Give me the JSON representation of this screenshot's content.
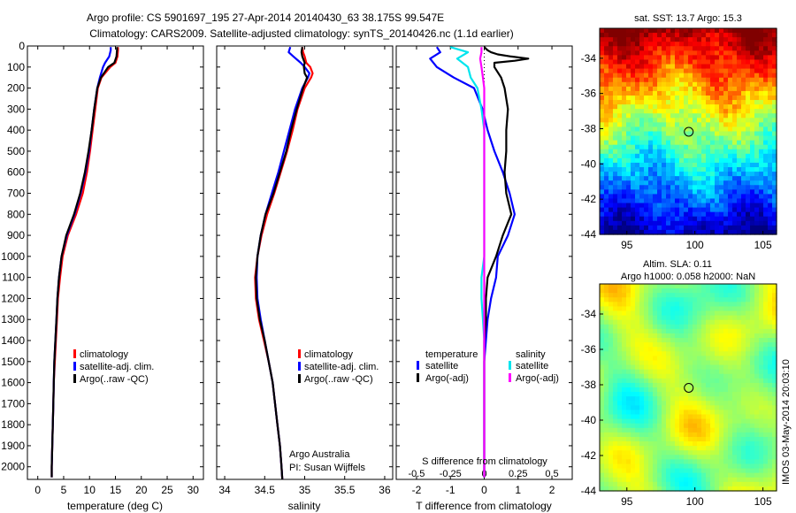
{
  "title_line1": "Argo profile: CS 5901697_195 27-Apr-2014 20140430_63 38.175S 99.547E",
  "title_line2": "Climatology: CARS2009. Satellite-adjusted climatology: synTS_20140426.nc (1.1d earlier)",
  "map1_title": "sat. SST: 13.7 Argo: 15.3",
  "map2_title_line1": "Altim. SLA: 0.11",
  "map2_title_line2": "Argo h1000: 0.058 h2000: NaN",
  "side_note": "IMOS 03-May-2014 20:03:10",
  "credit_line1": "Argo Australia",
  "credit_line2": "PI: Susan Wijffels",
  "colors": {
    "climatology": "#ff0000",
    "satellite": "#0000ff",
    "argo": "#000000",
    "sat_s_diff": "#00e5ee",
    "argo_s_diff": "#ff00ff"
  },
  "depth_ticks": [
    0,
    100,
    200,
    300,
    400,
    500,
    600,
    700,
    800,
    900,
    1000,
    1100,
    1200,
    1300,
    1400,
    1500,
    1600,
    1700,
    1800,
    1900,
    2000
  ],
  "chart_data": [
    {
      "type": "line",
      "xlabel": "temperature (deg C)",
      "ylabel": "",
      "xlim": [
        -2,
        32
      ],
      "ylim": [
        2060,
        0
      ],
      "xticks": [
        0,
        5,
        10,
        15,
        20,
        25,
        30
      ],
      "legend": [
        "climatology",
        "satellite-adj. clim.",
        "Argo(..raw -QC)"
      ],
      "legend_position": "lower-right",
      "series": [
        {
          "name": "climatology",
          "depth": [
            5,
            20,
            50,
            80,
            100,
            150,
            200,
            300,
            400,
            500,
            600,
            700,
            800,
            900,
            1000,
            1100,
            1200,
            1300,
            1400,
            1500,
            1600,
            1700,
            1800,
            1900,
            2000,
            2050
          ],
          "values": [
            15.5,
            15.5,
            15.4,
            15.0,
            14.0,
            12.3,
            11.6,
            11.1,
            10.6,
            10.1,
            9.5,
            8.7,
            7.4,
            5.8,
            4.8,
            4.3,
            3.9,
            3.7,
            3.5,
            3.3,
            3.1,
            3.0,
            2.9,
            2.8,
            2.7,
            2.7
          ]
        },
        {
          "name": "satellite-adj. clim.",
          "depth": [
            5,
            20,
            50,
            80,
            100,
            150,
            200,
            300,
            400,
            500,
            600,
            700,
            800,
            900,
            1000,
            1100,
            1200,
            1300,
            1400,
            1500,
            1600,
            1700,
            1800,
            1900,
            2000,
            2050
          ],
          "values": [
            14.1,
            14.1,
            13.8,
            13.0,
            12.6,
            12.0,
            11.5,
            10.9,
            10.4,
            9.9,
            9.2,
            8.3,
            7.1,
            5.6,
            4.6,
            4.1,
            3.8,
            3.6,
            3.4,
            3.2,
            3.1,
            3.0,
            2.9,
            2.8,
            2.7,
            2.7
          ]
        },
        {
          "name": "Argo(..raw -QC)",
          "depth": [
            5,
            20,
            50,
            80,
            100,
            150,
            200,
            300,
            400,
            500,
            600,
            700,
            800,
            900,
            1000,
            1100,
            1200,
            1300,
            1400,
            1500,
            1600,
            1700,
            1800,
            1900,
            2000,
            2050
          ],
          "values": [
            15.3,
            15.3,
            15.2,
            14.8,
            13.6,
            12.2,
            11.5,
            10.9,
            10.4,
            9.8,
            9.1,
            8.2,
            7.0,
            5.5,
            4.6,
            4.1,
            3.8,
            3.6,
            3.4,
            3.2,
            3.1,
            3.0,
            2.9,
            2.8,
            2.7,
            2.7
          ]
        }
      ]
    },
    {
      "type": "line",
      "xlabel": "salinity",
      "ylabel": "",
      "xlim": [
        33.9,
        36.1
      ],
      "ylim": [
        2060,
        0
      ],
      "xticks": [
        34,
        34.5,
        35,
        35.5,
        36
      ],
      "xtick_labels": [
        "34",
        "34.5",
        "35",
        "35.5",
        "36"
      ],
      "legend": [
        "climatology",
        "satellite-adj. clim.",
        "Argo(..raw -QC)"
      ],
      "legend_position": "lower-right",
      "series": [
        {
          "name": "climatology",
          "depth": [
            5,
            30,
            50,
            80,
            100,
            130,
            150,
            200,
            300,
            400,
            500,
            600,
            700,
            800,
            900,
            1000,
            1100,
            1200,
            1300,
            1400,
            1500,
            1600,
            1700,
            1800,
            1900,
            2000,
            2060
          ],
          "values": [
            34.97,
            34.98,
            35.0,
            35.02,
            35.07,
            35.1,
            35.08,
            35.0,
            34.91,
            34.85,
            34.78,
            34.7,
            34.62,
            34.53,
            34.46,
            34.41,
            34.38,
            34.39,
            34.43,
            34.49,
            34.55,
            34.6,
            34.63,
            34.66,
            34.69,
            34.71,
            34.72
          ]
        },
        {
          "name": "satellite-adj. clim.",
          "depth": [
            5,
            30,
            50,
            80,
            100,
            130,
            150,
            200,
            300,
            400,
            500,
            600,
            700,
            800,
            900,
            1000,
            1100,
            1200,
            1300,
            1400,
            1500,
            1600,
            1700,
            1800,
            1900,
            2000,
            2060
          ],
          "values": [
            34.82,
            34.8,
            34.86,
            34.95,
            35.0,
            35.06,
            35.04,
            34.97,
            34.88,
            34.81,
            34.74,
            34.67,
            34.59,
            34.51,
            34.45,
            34.41,
            34.4,
            34.41,
            34.45,
            34.5,
            34.55,
            34.6,
            34.63,
            34.66,
            34.69,
            34.71,
            34.72
          ]
        },
        {
          "name": "Argo(..raw -QC)",
          "depth": [
            5,
            30,
            50,
            80,
            100,
            130,
            150,
            200,
            300,
            400,
            500,
            600,
            700,
            800,
            900,
            1000,
            1100,
            1200,
            1300,
            1400,
            1500,
            1600,
            1700,
            1800,
            1900,
            2000,
            2060
          ],
          "values": [
            34.97,
            34.96,
            34.97,
            35.0,
            34.99,
            35.0,
            35.03,
            34.98,
            34.9,
            34.83,
            34.77,
            34.69,
            34.61,
            34.51,
            34.45,
            34.41,
            34.39,
            34.4,
            34.44,
            34.5,
            34.55,
            34.6,
            34.63,
            34.66,
            34.69,
            34.71,
            34.72
          ]
        }
      ]
    },
    {
      "type": "line",
      "xlabel": "T difference from climatology",
      "xlabel_top": "S difference from climatology",
      "ylabel": "",
      "xlim": [
        -2.6,
        2.6
      ],
      "ylim": [
        2060,
        0
      ],
      "xticks": [
        -2,
        -1,
        0,
        1,
        2
      ],
      "s_ticks": [
        -0.5,
        -0.25,
        0,
        0.25,
        0.5
      ],
      "s_to_t_scale": 4,
      "legend": [
        "temperature satellite",
        "temperature Argo(-adj)",
        "salinity satellite",
        "salinity Argo(-adj)"
      ],
      "legend_position": "lower-center",
      "series": [
        {
          "name": "temperature satellite",
          "depth": [
            5,
            30,
            60,
            100,
            150,
            200,
            300,
            400,
            500,
            600,
            700,
            800,
            900,
            1000,
            1100,
            1200,
            1300,
            1400,
            1500,
            1600,
            1700,
            1800,
            1900,
            2000,
            2050
          ],
          "values": [
            -1.4,
            -1.3,
            -1.6,
            -1.4,
            -0.9,
            -0.3,
            -0.05,
            0.1,
            0.3,
            0.55,
            0.75,
            0.9,
            0.7,
            0.4,
            0.35,
            0.2,
            0.1,
            0.05,
            0.0,
            0.0,
            0.0,
            0.0,
            0.0,
            0.0,
            0.0
          ]
        },
        {
          "name": "temperature Argo(-adj)",
          "depth": [
            5,
            20,
            30,
            40,
            50,
            60,
            70,
            80,
            100,
            150,
            200,
            300,
            400,
            500,
            600,
            700,
            800,
            900,
            1000,
            1100,
            1200,
            1300,
            1400,
            1500,
            1600,
            1700,
            1800,
            1900,
            2000,
            2050
          ],
          "values": [
            0.0,
            0.1,
            0.2,
            0.4,
            0.8,
            1.3,
            0.9,
            0.3,
            0.3,
            0.5,
            0.6,
            0.7,
            0.65,
            0.65,
            0.6,
            0.65,
            0.8,
            0.55,
            0.35,
            0.1,
            0.05,
            0.05,
            0.0,
            0.0,
            0.0,
            0.0,
            0.0,
            0.0,
            0.0,
            0.0
          ]
        },
        {
          "name": "salinity satellite",
          "depth": [
            5,
            30,
            60,
            100,
            150,
            200,
            300,
            400,
            500,
            600,
            700,
            800,
            900,
            1000,
            1100,
            1200,
            1300,
            1400,
            1500,
            1600,
            1700,
            1800,
            1900,
            2000,
            2050
          ],
          "values": [
            -0.25,
            -0.12,
            -0.2,
            -0.12,
            -0.1,
            -0.05,
            -0.02,
            0.0,
            0.0,
            0.0,
            0.0,
            0.0,
            0.0,
            0.0,
            -0.02,
            -0.02,
            -0.01,
            0.0,
            0.0,
            0.0,
            0.0,
            0.0,
            0.0,
            0.0,
            0.0
          ]
        },
        {
          "name": "salinity Argo(-adj)",
          "depth": [
            5,
            30,
            60,
            100,
            150,
            200,
            300,
            400,
            500,
            600,
            700,
            800,
            900,
            1000,
            1100,
            1200,
            1300,
            1400,
            1500,
            1600,
            1700,
            1800,
            1900,
            2000,
            2050
          ],
          "values": [
            -0.02,
            -0.02,
            -0.03,
            -0.02,
            -0.01,
            0.0,
            0.0,
            0.0,
            0.0,
            0.0,
            0.0,
            0.0,
            0.0,
            0.0,
            0.0,
            0.0,
            0.0,
            0.0,
            0.0,
            0.0,
            0.0,
            0.0,
            0.0,
            0.0,
            0.0
          ]
        }
      ]
    },
    {
      "type": "heatmap",
      "title": "sat. SST: 13.7 Argo: 15.3",
      "xlim": [
        93,
        106
      ],
      "ylim": [
        -44,
        -32.3
      ],
      "xticks": [
        95,
        100,
        105
      ],
      "yticks": [
        -34,
        -36,
        -38,
        -40,
        -42,
        -44
      ],
      "float_position": {
        "lon": 99.547,
        "lat": -38.175
      }
    },
    {
      "type": "heatmap",
      "title": "Altim. SLA: 0.11 / Argo h1000: 0.058 h2000: NaN",
      "xlim": [
        93,
        106
      ],
      "ylim": [
        -44,
        -32.3
      ],
      "xticks": [
        95,
        100,
        105
      ],
      "yticks": [
        -34,
        -36,
        -38,
        -40,
        -42,
        -44
      ],
      "float_position": {
        "lon": 99.547,
        "lat": -38.175
      }
    }
  ]
}
